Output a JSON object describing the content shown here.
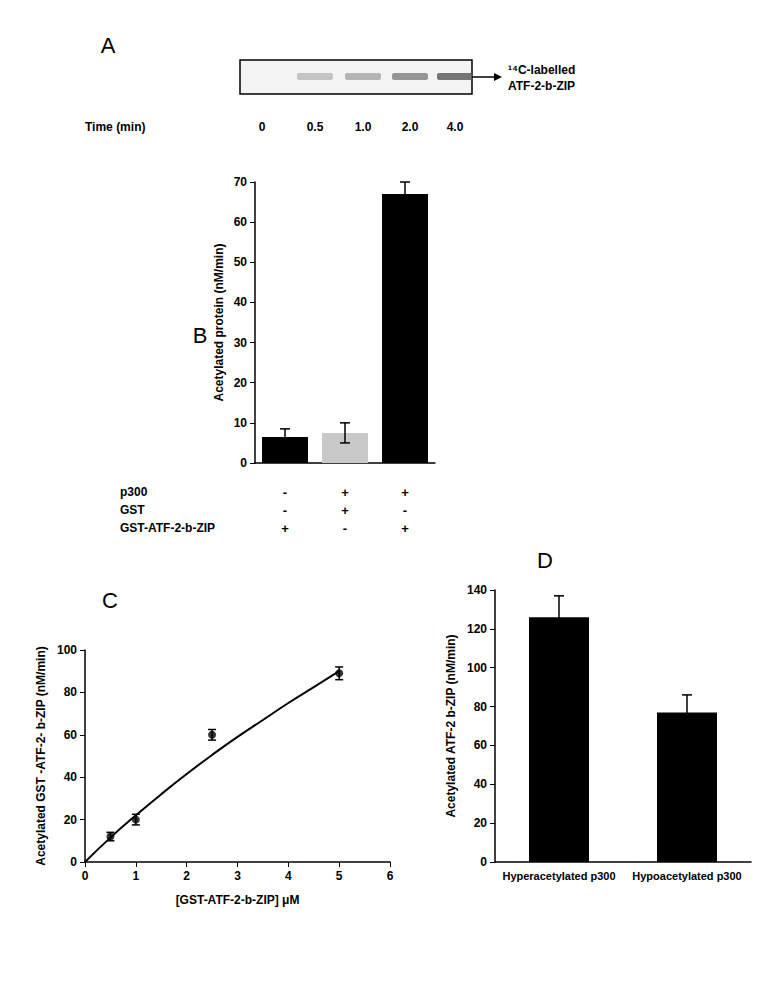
{
  "gel": {
    "title": "A",
    "x_label": "Time (min)",
    "lanes": [
      "0",
      "0.5",
      "1.0",
      "2.0",
      "4.0"
    ],
    "band_intensity": [
      0,
      0.3,
      0.4,
      0.6,
      0.8
    ],
    "band_label": [
      "¹⁴C-labelled",
      "ATF-2-b-ZIP"
    ]
  },
  "chart_data": [
    {
      "type": "bar",
      "title": "B",
      "y_label": "Acetylated protein (nM/min)",
      "categories": [
        null,
        null,
        null
      ],
      "values": [
        6.5,
        7.5,
        67
      ],
      "errors": [
        2,
        2.5,
        3
      ],
      "colors": [
        "#000000",
        "#c8c8c8",
        "#000000"
      ],
      "ylim": [
        0,
        70
      ],
      "yticks": [
        0,
        10,
        20,
        30,
        40,
        50,
        60,
        70
      ],
      "conditions": [
        {
          "label": "p300",
          "marks": [
            "-",
            "+",
            "+"
          ]
        },
        {
          "label": "GST",
          "marks": [
            "-",
            "+",
            "-"
          ]
        },
        {
          "label": "GST-ATF-2-b-ZIP",
          "marks": [
            "+",
            "-",
            "+"
          ]
        }
      ],
      "tick_labels": "y",
      "grid": false
    },
    {
      "type": "scatter",
      "title": "C",
      "x_label": "[GST-ATF-2-b-ZIP] μM",
      "y_label": "Acetylated GST -ATF-2- b-ZIP (nM/min)",
      "xlim": [
        0,
        6
      ],
      "xticks": [
        0,
        1,
        2,
        3,
        4,
        5,
        6
      ],
      "ylim": [
        0,
        100
      ],
      "yticks": [
        0,
        20,
        40,
        60,
        80,
        100
      ],
      "grid": false,
      "series": [
        {
          "type": "scatter",
          "color": "#000000",
          "marker": "circle",
          "x": [
            0.5,
            1,
            2.5,
            5
          ],
          "values": [
            12,
            20,
            60,
            89
          ],
          "errors": [
            2,
            2.5,
            2.5,
            3
          ]
        },
        {
          "type": "line",
          "color": "#000000",
          "line_style": "solid",
          "x": [
            0,
            0.5,
            1,
            1.5,
            2,
            2.5,
            3,
            3.5,
            4,
            4.5,
            5
          ],
          "values": [
            0,
            11.5,
            22,
            32,
            41.5,
            50.5,
            59,
            67,
            75,
            82.5,
            90
          ]
        }
      ]
    },
    {
      "type": "bar",
      "title": "D",
      "y_label": "Acetylated ATF-2 b-ZIP (nM/min)",
      "categories": [
        "Hyperacetylated p300",
        "Hypoacetylated p300"
      ],
      "values": [
        126,
        77
      ],
      "errors": [
        11,
        9
      ],
      "color": "#000000",
      "ylim": [
        0,
        140
      ],
      "yticks": [
        0,
        20,
        40,
        60,
        80,
        100,
        120,
        140
      ],
      "grid": false
    }
  ]
}
